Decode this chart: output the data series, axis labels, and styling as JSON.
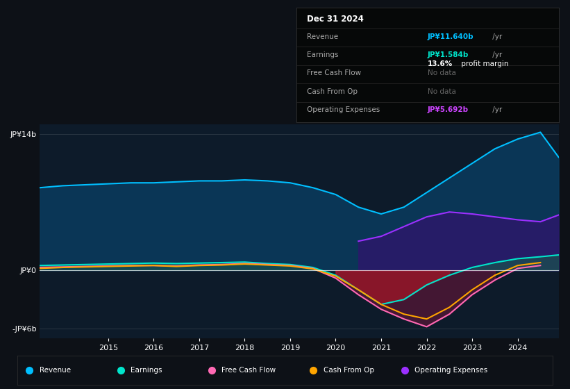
{
  "bg_color": "#0d1117",
  "plot_bg_color": "#0d1b2a",
  "years": [
    2013.5,
    2014,
    2014.5,
    2015,
    2015.5,
    2016,
    2016.5,
    2017,
    2017.5,
    2018,
    2018.5,
    2019,
    2019.5,
    2020,
    2020.5,
    2021,
    2021.5,
    2022,
    2022.5,
    2023,
    2023.5,
    2024,
    2024.5,
    2024.9
  ],
  "revenue": [
    8.5,
    8.7,
    8.8,
    8.9,
    9.0,
    9.0,
    9.1,
    9.2,
    9.2,
    9.3,
    9.2,
    9.0,
    8.5,
    7.8,
    6.5,
    5.8,
    6.5,
    8.0,
    9.5,
    11.0,
    12.5,
    13.5,
    14.2,
    11.64
  ],
  "earnings": [
    0.5,
    0.55,
    0.6,
    0.65,
    0.7,
    0.75,
    0.7,
    0.75,
    0.8,
    0.85,
    0.7,
    0.6,
    0.3,
    -0.5,
    -2.0,
    -3.5,
    -3.0,
    -1.5,
    -0.5,
    0.3,
    0.8,
    1.2,
    1.4,
    1.584
  ],
  "free_cash_flow": [
    0.3,
    0.35,
    0.4,
    0.45,
    0.5,
    0.5,
    0.45,
    0.55,
    0.6,
    0.7,
    0.6,
    0.5,
    0.2,
    -0.8,
    -2.5,
    -4.0,
    -5.0,
    -5.8,
    -4.5,
    -2.5,
    -1.0,
    0.2,
    0.5,
    null
  ],
  "cash_from_op": [
    0.2,
    0.3,
    0.35,
    0.4,
    0.45,
    0.5,
    0.4,
    0.5,
    0.55,
    0.65,
    0.55,
    0.45,
    0.15,
    -0.6,
    -2.0,
    -3.5,
    -4.5,
    -5.0,
    -3.8,
    -2.0,
    -0.5,
    0.5,
    0.8,
    null
  ],
  "op_expenses": [
    null,
    null,
    null,
    null,
    null,
    null,
    null,
    null,
    null,
    null,
    null,
    null,
    null,
    null,
    3.0,
    3.5,
    4.5,
    5.5,
    6.0,
    5.8,
    5.5,
    5.2,
    5.0,
    5.692
  ],
  "ylim": [
    -7,
    15
  ],
  "yticks": [
    -6,
    0,
    14
  ],
  "ytick_labels": [
    "-JP¥6b",
    "JP¥0",
    "JP¥14b"
  ],
  "xtick_years": [
    2015,
    2016,
    2017,
    2018,
    2019,
    2020,
    2021,
    2022,
    2023,
    2024
  ],
  "colors": {
    "revenue": "#00bfff",
    "earnings": "#00e5cc",
    "free_cash_flow": "#ff69b4",
    "cash_from_op": "#ffa500",
    "op_expenses": "#9b30ff"
  },
  "fill_colors": {
    "revenue": "#0a3a5c",
    "earnings_pos": "#1a5050",
    "earnings_neg": "#8b1a1a",
    "op_expenses": "#2a1a6a"
  },
  "info_box": {
    "date": "Dec 31 2024",
    "rows": [
      {
        "label": "Revenue",
        "value": "JP¥11.640b",
        "unit": " /yr",
        "value_color": "#00bfff"
      },
      {
        "label": "Earnings",
        "value": "JP¥1.584b",
        "unit": " /yr",
        "value_color": "#00e5cc"
      },
      {
        "label": "",
        "value": "13.6%",
        "unit": " profit margin",
        "value_color": "#ffffff"
      },
      {
        "label": "Free Cash Flow",
        "value": "No data",
        "unit": "",
        "value_color": "#666666"
      },
      {
        "label": "Cash From Op",
        "value": "No data",
        "unit": "",
        "value_color": "#666666"
      },
      {
        "label": "Operating Expenses",
        "value": "JP¥5.692b",
        "unit": " /yr",
        "value_color": "#cc44ff"
      }
    ]
  },
  "legend_items": [
    {
      "label": "Revenue",
      "color": "#00bfff"
    },
    {
      "label": "Earnings",
      "color": "#00e5cc"
    },
    {
      "label": "Free Cash Flow",
      "color": "#ff69b4"
    },
    {
      "label": "Cash From Op",
      "color": "#ffa500"
    },
    {
      "label": "Operating Expenses",
      "color": "#9b30ff"
    }
  ]
}
